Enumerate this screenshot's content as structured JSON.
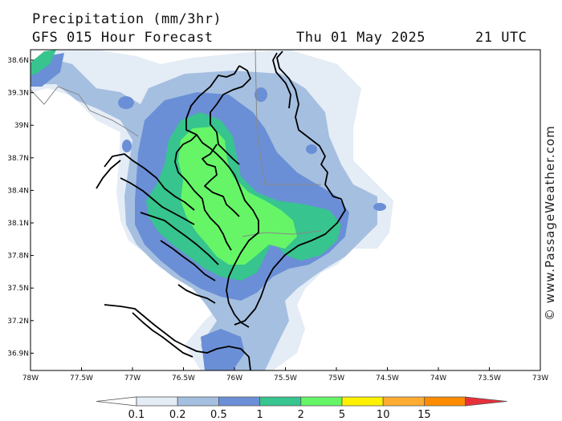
{
  "header": {
    "title": "Precipitation (mm/3hr)",
    "subtitle": "GFS 015 Hour Forecast",
    "date": "Thu 01 May 2025",
    "time": "21 UTC"
  },
  "credit": "© www.PassageWeather.com",
  "map": {
    "lon_range": [
      -78,
      -73
    ],
    "lat_range": [
      36.7,
      38.7
    ],
    "lat_ticks": [
      "38.6N",
      "39.3N",
      "39N",
      "38.7N",
      "38.4N",
      "38.1N",
      "37.8N",
      "37.5N",
      "37.2N",
      "36.9N"
    ],
    "lon_ticks": [
      "78W",
      "77.5W",
      "77W",
      "76.5W",
      "76W",
      "75.5W",
      "75W",
      "74.5W",
      "74W",
      "73.5W",
      "73W"
    ],
    "coast_color": "#000000",
    "border_color": "#888888"
  },
  "legend": {
    "bins": [
      {
        "color": "#ffffff"
      },
      {
        "color": "#e4ecf6"
      },
      {
        "color": "#a5bfe0"
      },
      {
        "color": "#6b8fd6"
      },
      {
        "color": "#37c48e"
      },
      {
        "color": "#66f567"
      },
      {
        "color": "#fff200"
      },
      {
        "color": "#ffac33"
      },
      {
        "color": "#ff8c00"
      },
      {
        "color": "#e8303c"
      }
    ],
    "labels": [
      "0.1",
      "0.2",
      "0.5",
      "1",
      "2",
      "5",
      "10",
      "15"
    ]
  },
  "precip_colors": {
    "lvl1": "#e4ecf6",
    "lvl2": "#a5bfe0",
    "lvl3": "#6b8fd6",
    "lvl4": "#37c48e",
    "lvl5": "#66f567"
  }
}
